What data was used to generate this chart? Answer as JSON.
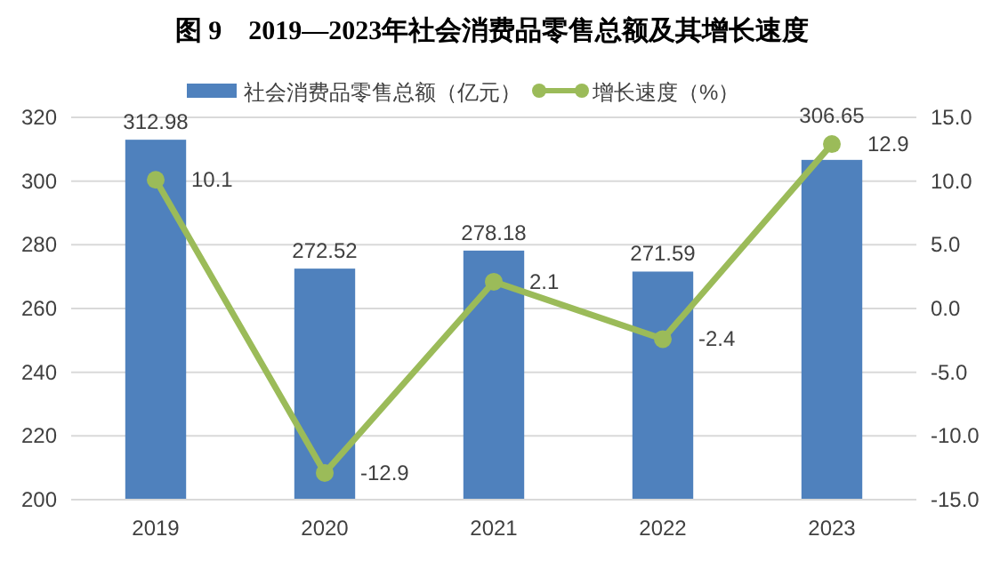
{
  "chart_data": {
    "type": "bar",
    "title": "图 9　2019—2023年社会消费品零售总额及其增长速度",
    "categories": [
      "2019",
      "2020",
      "2021",
      "2022",
      "2023"
    ],
    "series": [
      {
        "name": "社会消费品零售总额（亿元）",
        "color": "#4f81bd",
        "values": [
          312.98,
          272.52,
          278.18,
          271.59,
          306.65
        ]
      },
      {
        "name": "增长速度（%）",
        "type": "line",
        "axis": "y2",
        "color": "#9bbb59",
        "marker": "circle",
        "values": [
          10.1,
          -12.9,
          2.1,
          -2.4,
          12.9
        ]
      }
    ],
    "ylim": [
      200,
      320
    ],
    "yticks": [
      200,
      220,
      240,
      260,
      280,
      300,
      320
    ],
    "y2lim": [
      -15,
      15
    ],
    "y2ticks": [
      {
        "value": -15,
        "label": "-15.0"
      },
      {
        "value": -10,
        "label": "-10.0"
      },
      {
        "value": -5,
        "label": "-5.0"
      },
      {
        "value": 0,
        "label": "0.0"
      },
      {
        "value": 5,
        "label": "5.0"
      },
      {
        "value": 10,
        "label": "10.0"
      },
      {
        "value": 15,
        "label": "15.0"
      }
    ],
    "grid": "y",
    "legend": "top",
    "data_labels": true
  }
}
